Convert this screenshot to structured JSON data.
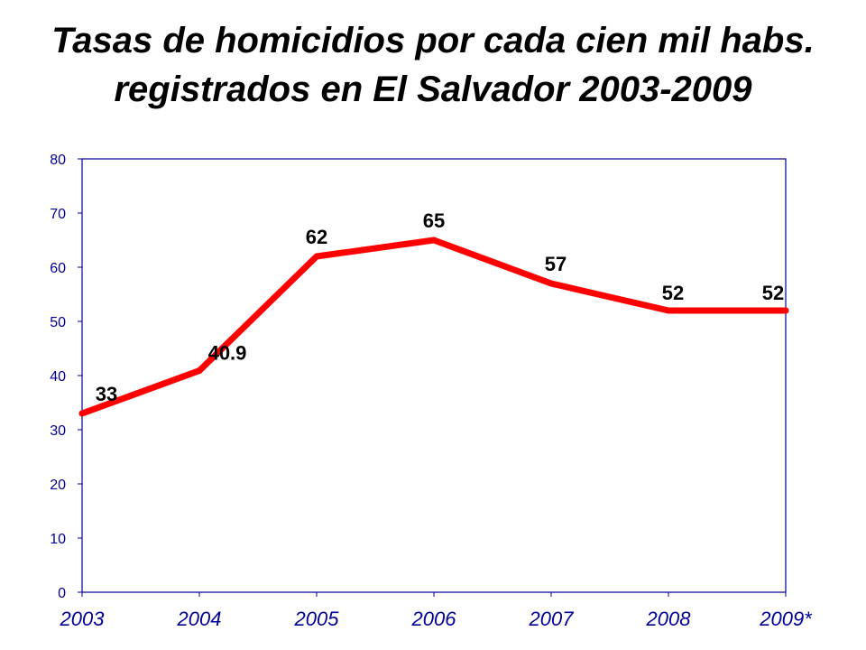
{
  "title_line1": "Tasas de homicidios por cada cien mil habs.",
  "title_line2": "registrados en El Salvador 2003-2009",
  "chart_data": {
    "type": "line",
    "categories": [
      "2003",
      "2004",
      "2005",
      "2006",
      "2007",
      "2008",
      "2009*"
    ],
    "series": [
      {
        "values": [
          33,
          40.9,
          62,
          65,
          57,
          52,
          52
        ],
        "labels": [
          "33",
          "40.9",
          "62",
          "65",
          "57",
          "52",
          "52"
        ]
      }
    ],
    "xlabel": "",
    "ylabel": "",
    "ylim": [
      0,
      80
    ],
    "yticks": [
      0,
      10,
      20,
      30,
      40,
      50,
      60,
      70,
      80
    ],
    "grid": false,
    "legend": "none",
    "colors": {
      "line": "#ff0000",
      "tick_labels": "#000099",
      "frame": "#000099"
    }
  }
}
